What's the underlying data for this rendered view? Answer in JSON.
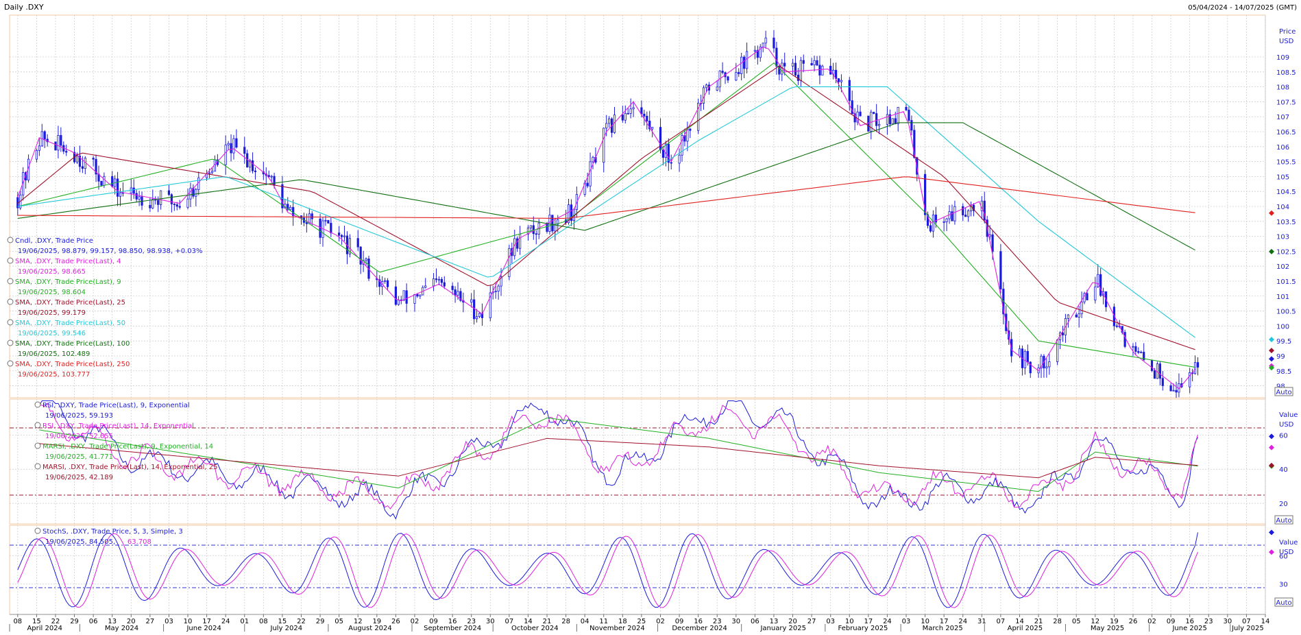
{
  "header": {
    "title": "Daily .DXY",
    "range": "05/04/2024 - 14/07/2025 (GMT)"
  },
  "price_axis": {
    "title_line1": "Price",
    "title_line2": "USD",
    "auto": "Auto",
    "ticks": [
      "109",
      "108.5",
      "108",
      "107.5",
      "107",
      "106.5",
      "106",
      "105.5",
      "105",
      "104.5",
      "104",
      "103.5",
      "103",
      "102.5",
      "102",
      "101.5",
      "101",
      "100.5",
      "100",
      "99.5",
      "99",
      "98.5",
      "98"
    ]
  },
  "rsi_axis": {
    "title_line1": "Value",
    "title_line2": "USD",
    "auto": "Auto",
    "ticks": [
      "60",
      "40",
      "20"
    ]
  },
  "stoch_axis": {
    "title_line1": "Value",
    "title_line2": "USD",
    "auto": "Auto",
    "ticks": [
      "60",
      "30"
    ]
  },
  "time_axis": {
    "days": [
      "08",
      "15",
      "22",
      "29",
      "06",
      "13",
      "20",
      "27",
      "03",
      "10",
      "17",
      "24",
      "01",
      "08",
      "15",
      "22",
      "29",
      "05",
      "12",
      "19",
      "26",
      "02",
      "09",
      "16",
      "23",
      "30",
      "07",
      "14",
      "21",
      "28",
      "04",
      "11",
      "18",
      "25",
      "02",
      "09",
      "16",
      "23",
      "30",
      "06",
      "13",
      "20",
      "27",
      "03",
      "10",
      "17",
      "24",
      "03",
      "10",
      "17",
      "24",
      "31",
      "07",
      "14",
      "21",
      "28",
      "05",
      "12",
      "19",
      "26",
      "02",
      "09",
      "16",
      "23",
      "30",
      "07",
      "14"
    ],
    "months": [
      "April 2024",
      "May 2024",
      "June 2024",
      "July 2024",
      "August 2024",
      "September 2024",
      "October 2024",
      "November 2024",
      "December 2024",
      "January 2025",
      "February 2025",
      "March 2025",
      "April 2025",
      "May 2025",
      "June 2025",
      "July 2025"
    ]
  },
  "legends": {
    "price": [
      {
        "title": "Cndl, .DXY, Trade Price",
        "value": "19/06/2025, 98.879, 99.157, 98.850, 98.938, +0.03%",
        "color": "#1a1adb"
      },
      {
        "title": "SMA, .DXY, Trade Price(Last), 4",
        "value": "19/06/2025, 98.665",
        "color": "#e020e0"
      },
      {
        "title": "SMA, .DXY, Trade Price(Last), 9",
        "value": "19/06/2025, 98.604",
        "color": "#22b022"
      },
      {
        "title": "SMA, .DXY, Trade Price(Last), 25",
        "value": "19/06/2025, 99.179",
        "color": "#a0102a"
      },
      {
        "title": "SMA, .DXY, Trade Price(Last), 50",
        "value": "19/06/2025, 99.546",
        "color": "#22c8d8"
      },
      {
        "title": "SMA, .DXY, Trade Price(Last), 100",
        "value": "19/06/2025, 102.489",
        "color": "#107010"
      },
      {
        "title": "SMA, .DXY, Trade Price(Last), 250",
        "value": "19/06/2025, 103.777",
        "color": "#e02020"
      }
    ],
    "rsi": [
      {
        "title": "RSI, .DXY, Trade Price(Last), 9, Exponential",
        "value": "19/06/2025, 59.193",
        "color": "#1a1adb"
      },
      {
        "title": "RSI, .DXY, Trade Price(Last), 14, Exponential",
        "value": "19/06/2025, 52.655",
        "color": "#e020e0"
      },
      {
        "title": "MARSI, .DXY, Trade Price(Last), 9, Exponential, 14",
        "value": "19/06/2025, 41.771",
        "color": "#22b022"
      },
      {
        "title": "MARSI, .DXY, Trade Price(Last), 14, Exponential, 25",
        "value": "19/06/2025, 42.189",
        "color": "#a0102a"
      }
    ],
    "stoch": [
      {
        "title": "StochS, .DXY, Trade Price, 5, 3, Simple, 3",
        "value": "19/06/2025, 84.505,",
        "value2": "63.708",
        "color": "#1a1adb",
        "color2": "#e020e0"
      }
    ]
  },
  "chart_data": [
    {
      "type": "candlestick",
      "title": "Daily .DXY",
      "ylabel": "Price USD",
      "ylim": [
        97.6,
        110.4
      ],
      "grid": true,
      "x_range": [
        "05/04/2024",
        "14/07/2025"
      ],
      "series": [
        {
          "name": "Cndl, .DXY, Trade Price",
          "color": "#1a1adb",
          "x": [
            "2024-04-08",
            "2024-04-16",
            "2024-04-29",
            "2024-05-15",
            "2024-06-07",
            "2024-06-26",
            "2024-07-10",
            "2024-07-17",
            "2024-08-05",
            "2024-08-27",
            "2024-09-11",
            "2024-09-27",
            "2024-10-10",
            "2024-10-31",
            "2024-11-12",
            "2024-11-22",
            "2024-12-06",
            "2024-12-20",
            "2025-01-10",
            "2025-01-17",
            "2025-02-03",
            "2025-02-14",
            "2025-03-03",
            "2025-03-11",
            "2025-03-31",
            "2025-04-11",
            "2025-04-21",
            "2025-05-12",
            "2025-05-26",
            "2025-06-12",
            "2025-06-19"
          ],
          "values": [
            104.3,
            106.3,
            105.8,
            104.5,
            104.1,
            106.0,
            105.0,
            103.8,
            103.0,
            100.8,
            101.4,
            100.4,
            102.9,
            103.9,
            106.5,
            107.5,
            105.5,
            108.0,
            109.4,
            108.5,
            108.6,
            106.7,
            107.2,
            103.4,
            104.2,
            99.2,
            98.5,
            101.6,
            99.1,
            97.9,
            98.9
          ]
        },
        {
          "name": "SMA, .DXY, Trade Price(Last), 4",
          "color": "#e020e0",
          "x": [
            "2025-06-19"
          ],
          "values": [
            98.665
          ]
        },
        {
          "name": "SMA, .DXY, Trade Price(Last), 9",
          "color": "#22b022",
          "x": [
            "2024-04-08",
            "2024-06-20",
            "2024-08-20",
            "2024-10-28",
            "2025-01-13",
            "2025-03-10",
            "2025-04-21",
            "2025-06-19"
          ],
          "values": [
            104.0,
            105.6,
            101.8,
            103.5,
            108.8,
            103.8,
            99.5,
            98.604
          ]
        },
        {
          "name": "SMA, .DXY, Trade Price(Last), 25",
          "color": "#a0102a",
          "x": [
            "2024-04-08",
            "2024-05-01",
            "2024-07-26",
            "2024-09-30",
            "2024-11-25",
            "2025-01-15",
            "2025-03-17",
            "2025-04-28",
            "2025-06-19"
          ],
          "values": [
            104.1,
            105.8,
            104.5,
            101.3,
            105.6,
            108.7,
            105.0,
            100.8,
            99.179
          ]
        },
        {
          "name": "SMA, .DXY, Trade Price(Last), 50",
          "color": "#22c8d8",
          "x": [
            "2024-04-08",
            "2024-06-24",
            "2024-09-30",
            "2024-12-16",
            "2025-01-20",
            "2025-02-24",
            "2025-04-21",
            "2025-06-19"
          ],
          "values": [
            104.0,
            105.0,
            101.6,
            106.2,
            108.0,
            108.0,
            103.5,
            99.546
          ]
        },
        {
          "name": "SMA, .DXY, Trade Price(Last), 100",
          "color": "#107010",
          "x": [
            "2024-04-08",
            "2024-07-22",
            "2024-11-04",
            "2025-02-28",
            "2025-03-24",
            "2025-06-19"
          ],
          "values": [
            103.6,
            104.9,
            103.2,
            106.8,
            106.8,
            102.489
          ]
        },
        {
          "name": "SMA, .DXY, Trade Price(Last), 250",
          "color": "#e02020",
          "x": [
            "2024-04-08",
            "2024-10-28",
            "2025-03-03",
            "2025-06-19"
          ],
          "values": [
            103.7,
            103.6,
            105.0,
            103.777
          ]
        }
      ]
    },
    {
      "type": "line",
      "ylabel": "Value USD",
      "ylim": [
        8,
        81
      ],
      "series": [
        {
          "name": "RSI, .DXY, Trade Price(Last), 9, Exponential",
          "color": "#1a1adb",
          "x": [
            "2024-04-16",
            "2024-05-22",
            "2024-07-22",
            "2024-08-27",
            "2024-10-21",
            "2024-11-15",
            "2024-12-20",
            "2025-01-14",
            "2025-02-21",
            "2025-03-24",
            "2025-04-21",
            "2025-05-12",
            "2025-06-13",
            "2025-06-19"
          ],
          "values": [
            79,
            45,
            30,
            20,
            79,
            35,
            75,
            70,
            20,
            30,
            20,
            55,
            25,
            59.193
          ]
        },
        {
          "name": "RSI, .DXY, Trade Price(Last), 14, Exponential",
          "color": "#e020e0",
          "x": [
            "2024-04-16",
            "2024-05-22",
            "2024-07-22",
            "2024-08-27",
            "2024-10-21",
            "2024-11-15",
            "2024-12-20",
            "2025-01-14",
            "2025-02-21",
            "2025-03-24",
            "2025-04-21",
            "2025-05-12",
            "2025-06-13",
            "2025-06-19"
          ],
          "values": [
            74,
            46,
            32,
            24,
            74,
            38,
            70,
            66,
            24,
            33,
            24,
            52,
            29,
            52.655
          ]
        },
        {
          "name": "MARSI, .DXY, Trade Price(Last), 9, Exponential, 14",
          "color": "#22b022",
          "x": [
            "2024-04-16",
            "2024-08-27",
            "2024-10-21",
            "2024-12-20",
            "2025-02-21",
            "2025-04-21",
            "2025-05-12",
            "2025-06-19"
          ],
          "values": [
            63,
            29,
            70,
            58,
            38,
            27,
            50,
            41.771
          ]
        },
        {
          "name": "MARSI, .DXY, Trade Price(Last), 14, Exponential, 25",
          "color": "#a0102a",
          "x": [
            "2024-04-16",
            "2024-08-27",
            "2024-10-21",
            "2024-12-20",
            "2025-02-21",
            "2025-04-21",
            "2025-05-12",
            "2025-06-19"
          ],
          "values": [
            55,
            36,
            58,
            53,
            42,
            35,
            47,
            42.189
          ]
        }
      ]
    },
    {
      "type": "line",
      "ylabel": "Value USD",
      "ylim": [
        -2,
        92
      ],
      "series": [
        {
          "name": "StochS, .DXY, Trade Price, 5, 3, Simple, 3",
          "color": "#1a1adb",
          "x": [
            "2025-06-19"
          ],
          "values": [
            84.505
          ]
        },
        {
          "name": "StochS, .DXY, Trade Price, 5, 3, Simple, 3 (signal)",
          "color": "#e020e0",
          "x": [
            "2025-06-19"
          ],
          "values": [
            63.708
          ]
        }
      ]
    }
  ]
}
